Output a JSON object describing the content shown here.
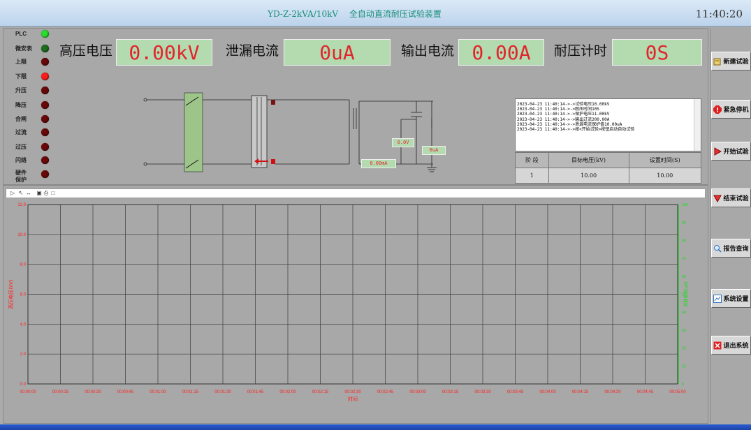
{
  "window": {
    "title": "YD-Z-2kVA/10kV　 全自动直流耐压试验装置",
    "clock": "11:40:20"
  },
  "lamps": [
    {
      "label": "PLC",
      "color": "#27e02b"
    },
    {
      "label": "微安表",
      "color": "#1c6e1c"
    },
    {
      "label": "上限",
      "color": "#6a0808"
    },
    {
      "label": "下限",
      "color": "#ff1c1c"
    },
    {
      "label": "升压",
      "color": "#6a0808"
    },
    {
      "label": "降压",
      "color": "#6a0808"
    },
    {
      "label": "合闸",
      "color": "#6a0808"
    },
    {
      "label": "过流",
      "color": "#6a0808"
    },
    {
      "label": "过压",
      "color": "#6a0808"
    },
    {
      "label": "闪络",
      "color": "#6a0808"
    },
    {
      "label": "硬件保护",
      "color": "#6a0808"
    }
  ],
  "meters": {
    "hv_label": "高压电压",
    "hv_value": "0.00kV",
    "leak_label": "泄漏电流",
    "leak_value": "0uA",
    "out_label": "输出电流",
    "out_value": "0.00A",
    "time_label": "耐压计时",
    "time_value": "0S"
  },
  "diagram": {
    "v1": "0.0V",
    "v2": "0uA",
    "v3": "0.00mA"
  },
  "log_lines": [
    "2023-04-23 11:40:14->->试验电压10.00kV",
    "2023-04-23 11:40:14->->耐压时间10S",
    "2023-04-23 11:40:14->->保护电压11.00kV",
    "2023-04-23 11:40:14->->输出过流200.00A",
    "2023-04-23 11:40:14->->泄漏电流保护值10.00uA",
    "2023-04-23 11:40:14->->按<开始试验>按钮启动自动试验"
  ],
  "stage_table": {
    "headers": [
      "阶 段",
      "目标电压(kV)",
      "设置时间(S)"
    ],
    "rows": [
      [
        "1",
        "10.00",
        "10.00"
      ]
    ]
  },
  "buttons": [
    {
      "label": "新建试验",
      "icon": "new-test-icon",
      "color": "#c8a020"
    },
    {
      "label": "紧急停机",
      "icon": "emergency-stop-icon",
      "color": "#e02020"
    },
    {
      "label": "开始试验",
      "icon": "play-icon",
      "color": "#e02020"
    },
    {
      "label": "结束试验",
      "icon": "stop-triangle-icon",
      "color": "#e02020"
    },
    {
      "label": "报告查询",
      "icon": "magnifier-icon",
      "color": "#3070c0"
    },
    {
      "label": "系统设置",
      "icon": "chart-settings-icon",
      "color": "#3070c0"
    },
    {
      "label": "退出系统",
      "icon": "exit-icon",
      "color": "#e02020"
    }
  ],
  "chart_data": {
    "type": "line",
    "xlabel": "时间",
    "ylabel_left": "高压电压(kV)",
    "ylabel_right": "泄漏电流(uA)",
    "ylim_left": [
      0,
      12
    ],
    "ylim_right": [
      0,
      100
    ],
    "x_ticks": [
      "00:00:00",
      "00:00:15",
      "00:00:30",
      "00:00:45",
      "00:01:00",
      "00:01:15",
      "00:01:30",
      "00:01:45",
      "00:02:00",
      "00:02:15",
      "00:02:30",
      "00:02:45",
      "00:03:00",
      "00:03:15",
      "00:03:30",
      "00:03:45",
      "00:04:00",
      "00:04:15",
      "00:04:30",
      "00:04:45",
      "00:05:00"
    ],
    "y_ticks_left": [
      "0.0",
      "2.0",
      "4.0",
      "6.0",
      "8.0",
      "10.0",
      "12.0"
    ],
    "y_ticks_right": [
      "0",
      "10",
      "20",
      "30",
      "40",
      "50",
      "60",
      "70",
      "80",
      "90",
      "100"
    ],
    "left_color": "#ff2020",
    "right_color": "#10e010",
    "grid": true,
    "series": []
  }
}
